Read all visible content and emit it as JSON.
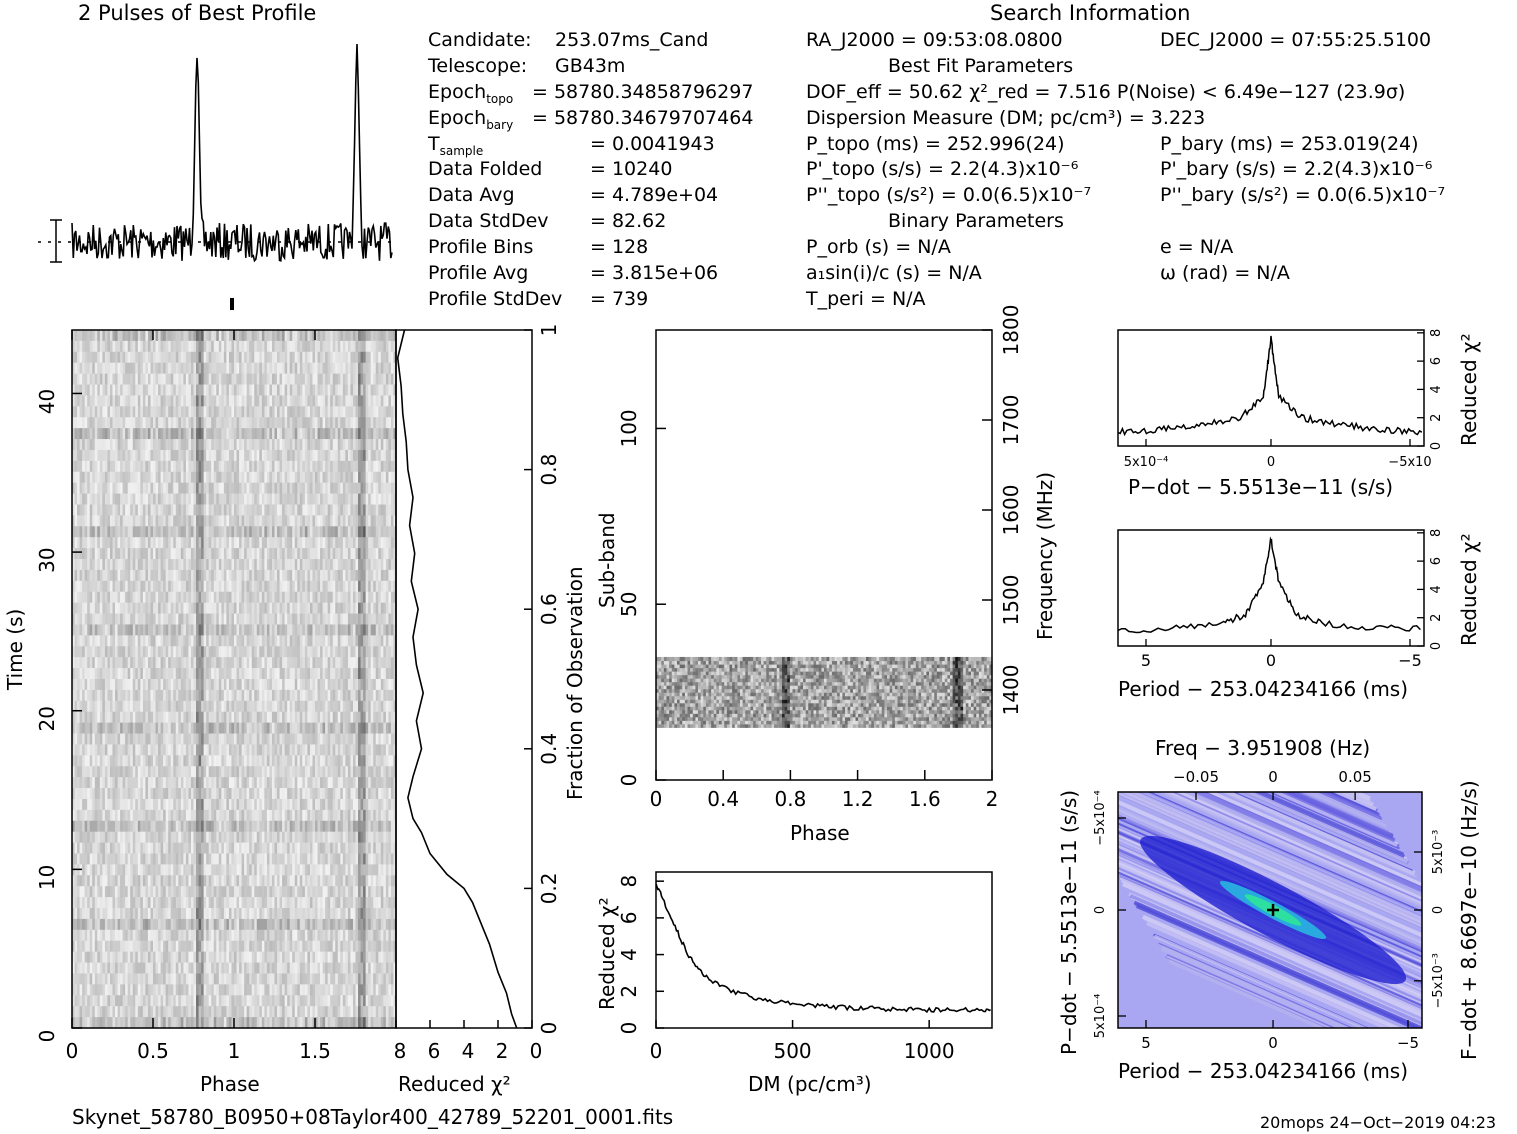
{
  "header": {
    "profile_title": "2 Pulses of Best Profile",
    "search_title": "Search Information",
    "best_fit_title": "Best Fit Parameters",
    "binary_title": "Binary Parameters"
  },
  "info_left": [
    {
      "label": "Candidate:",
      "value": "253.07ms_Cand"
    },
    {
      "label": "Telescope:",
      "value": "GB43m"
    },
    {
      "label": "Epoch_topo",
      "value": "= 58780.34858796297"
    },
    {
      "label": "Epoch_bary",
      "value": "= 58780.34679707464"
    },
    {
      "label": "T_sample",
      "value": "=   0.0041943"
    },
    {
      "label": "Data Folded",
      "value": "=   10240"
    },
    {
      "label": "Data Avg",
      "value": "=   4.789e+04"
    },
    {
      "label": "Data StdDev",
      "value": "=   82.62"
    },
    {
      "label": "Profile Bins",
      "value": "=   128"
    },
    {
      "label": "Profile Avg",
      "value": "=   3.815e+06"
    },
    {
      "label": "Profile StdDev",
      "value": "=   739"
    }
  ],
  "info_mid": {
    "ra": "RA_J2000 = 09:53:08.0800",
    "dec": "DEC_J2000 = 07:55:25.5100",
    "dof": "DOF_eff = 50.62  χ²_red = 7.516  P(Noise) < 6.49e−127  (23.9σ)",
    "dm": "Dispersion Measure (DM; pc/cm³) = 3.223",
    "p_topo": "P_topo (ms) =  252.996(24)",
    "p_bary": "P_bary (ms) =  253.019(24)",
    "pd_topo": "P'_topo (s/s) =  2.2(4.3)x10⁻⁶",
    "pd_bary": "P'_bary (s/s) =  2.2(4.3)x10⁻⁶",
    "pdd_topo": "P''_topo (s/s²) = 0.0(6.5)x10⁻⁷",
    "pdd_bary": "P''_bary (s/s²) = 0.0(6.5)x10⁻⁷",
    "porb": "P_orb (s) = N/A",
    "ecc": "e = N/A",
    "a1": "a₁sin(i)/c (s) = N/A",
    "omega": "ω (rad) = N/A",
    "tperi": "T_peri = N/A"
  },
  "footer": {
    "filename": "Skynet_58780_B0950+08Taylor400_42789_52201_0001.fits",
    "stamp": "20mops 24−Oct−2019 04:23"
  },
  "chart_data": [
    {
      "type": "line",
      "name": "profile",
      "title": "2 Pulses of Best Profile",
      "x": "phase 0–2",
      "peaks_phase": [
        0.78,
        1.78
      ]
    },
    {
      "type": "heatmap",
      "name": "time-phase",
      "xlabel": "Phase",
      "ylabel": "Time (s)",
      "xlim": [
        0,
        2
      ],
      "ylim": [
        0,
        44
      ],
      "xticks": [
        "0",
        "0.5",
        "1",
        "1.5"
      ],
      "yticks": [
        "0",
        "10",
        "20",
        "30",
        "40"
      ]
    },
    {
      "type": "line",
      "name": "reduced-chi2-vs-fraction",
      "xlabel": "Reduced χ²",
      "ylabel": "Fraction of Observation",
      "xlim": [
        8,
        0
      ],
      "ylim": [
        0,
        1
      ],
      "xticks": [
        "8",
        "6",
        "4",
        "2",
        "0"
      ],
      "yticks": [
        "0",
        "0.2",
        "0.4",
        "0.6",
        "0.8",
        "1"
      ],
      "points": [
        [
          0.9,
          0.0
        ],
        [
          1.2,
          0.02
        ],
        [
          1.5,
          0.05
        ],
        [
          2.0,
          0.08
        ],
        [
          2.5,
          0.12
        ],
        [
          3.0,
          0.15
        ],
        [
          3.5,
          0.18
        ],
        [
          4.0,
          0.2
        ],
        [
          5.0,
          0.22
        ],
        [
          6.0,
          0.25
        ],
        [
          6.5,
          0.28
        ],
        [
          7.0,
          0.3
        ],
        [
          7.3,
          0.33
        ],
        [
          7.0,
          0.36
        ],
        [
          6.5,
          0.4
        ],
        [
          6.8,
          0.44
        ],
        [
          6.4,
          0.48
        ],
        [
          6.8,
          0.52
        ],
        [
          7.0,
          0.56
        ],
        [
          6.7,
          0.6
        ],
        [
          7.1,
          0.64
        ],
        [
          6.9,
          0.68
        ],
        [
          7.2,
          0.72
        ],
        [
          7.0,
          0.76
        ],
        [
          7.3,
          0.8
        ],
        [
          7.4,
          0.84
        ],
        [
          7.6,
          0.88
        ],
        [
          7.7,
          0.92
        ],
        [
          7.9,
          0.96
        ],
        [
          7.5,
          1.0
        ]
      ]
    },
    {
      "type": "heatmap",
      "name": "subband-phase",
      "xlabel": "Phase",
      "ylabel": "Sub-band",
      "y2label": "Frequency (MHz)",
      "xlim": [
        0,
        2
      ],
      "ylim": [
        0,
        128
      ],
      "y2lim": [
        1300,
        1800
      ],
      "xticks": [
        "0",
        "0.4",
        "0.8",
        "1.2",
        "1.6",
        "2"
      ],
      "yticks": [
        "0",
        "50",
        "100"
      ],
      "y2ticks": [
        "1400",
        "1500",
        "1600",
        "1700",
        "1800"
      ]
    },
    {
      "type": "line",
      "name": "chi2-vs-dm",
      "xlabel": "DM (pc/cm³)",
      "ylabel": "Reduced χ²",
      "xlim": [
        0,
        1230
      ],
      "ylim": [
        0,
        8.5
      ],
      "xticks": [
        "0",
        "500",
        "1000"
      ],
      "yticks": [
        "0",
        "2",
        "4",
        "6",
        "8"
      ],
      "points": [
        [
          0,
          7.8
        ],
        [
          20,
          7.2
        ],
        [
          50,
          6.2
        ],
        [
          80,
          5.2
        ],
        [
          110,
          4.2
        ],
        [
          140,
          3.5
        ],
        [
          170,
          3.0
        ],
        [
          200,
          2.6
        ],
        [
          250,
          2.2
        ],
        [
          300,
          1.9
        ],
        [
          350,
          1.7
        ],
        [
          400,
          1.5
        ],
        [
          450,
          1.4
        ],
        [
          500,
          1.3
        ],
        [
          550,
          1.25
        ],
        [
          600,
          1.2
        ],
        [
          650,
          1.15
        ],
        [
          700,
          1.1
        ],
        [
          750,
          1.05
        ],
        [
          800,
          1.1
        ],
        [
          850,
          1.0
        ],
        [
          900,
          1.05
        ],
        [
          950,
          1.0
        ],
        [
          1000,
          1.0
        ],
        [
          1050,
          1.0
        ],
        [
          1100,
          0.95
        ],
        [
          1150,
          1.0
        ],
        [
          1200,
          1.0
        ],
        [
          1230,
          1.1
        ]
      ]
    },
    {
      "type": "line",
      "name": "chi2-vs-pdot",
      "xlabel": "P−dot − 5.5513e−11 (s/s)",
      "ylabel": "Reduced χ²",
      "xticks": [
        "5x10⁻⁴",
        "0",
        "−5x10"
      ],
      "yticks": [
        "0",
        "2",
        "4",
        "6",
        "8"
      ],
      "points": [
        [
          -1,
          1.0
        ],
        [
          -0.8,
          1.1
        ],
        [
          -0.6,
          1.3
        ],
        [
          -0.4,
          1.6
        ],
        [
          -0.2,
          2.0
        ],
        [
          -0.05,
          3.5
        ],
        [
          0,
          7.6
        ],
        [
          0.05,
          3.5
        ],
        [
          0.2,
          2.0
        ],
        [
          0.4,
          1.6
        ],
        [
          0.6,
          1.3
        ],
        [
          0.8,
          1.1
        ],
        [
          1,
          1.0
        ]
      ]
    },
    {
      "type": "line",
      "name": "chi2-vs-period",
      "xlabel": "Period − 253.04234166 (ms)",
      "ylabel": "Reduced χ²",
      "xticks": [
        "5",
        "0",
        "−5"
      ],
      "yticks": [
        "0",
        "2",
        "4",
        "6",
        "8"
      ],
      "points": [
        [
          6,
          1.0
        ],
        [
          4,
          1.3
        ],
        [
          2,
          1.6
        ],
        [
          1,
          2.2
        ],
        [
          0.3,
          4.5
        ],
        [
          0,
          7.6
        ],
        [
          -0.3,
          4.5
        ],
        [
          -1,
          2.2
        ],
        [
          -2,
          1.6
        ],
        [
          -4,
          1.3
        ],
        [
          -6,
          1.2
        ]
      ]
    },
    {
      "type": "heatmap",
      "name": "period-pdot",
      "title": "Freq − 3.951908 (Hz)",
      "xlabel": "Period − 253.04234166 (ms)",
      "ylabel": "P−dot − 5.5513e−11 (s/s)",
      "y2label": "F−dot + 8.6697e−10 (Hz/s)",
      "xticks": [
        "5",
        "0",
        "−5"
      ],
      "x2ticks": [
        "−0.05",
        "0",
        "0.05"
      ],
      "yticks": [
        "−5x10⁻⁴",
        "0",
        "5x10⁻⁴"
      ],
      "y2ticks": [
        "5x10⁻³",
        "0",
        "−5x10⁻³"
      ]
    }
  ]
}
